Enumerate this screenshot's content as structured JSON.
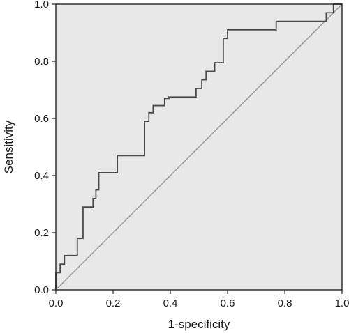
{
  "chart_data": {
    "type": "line",
    "title": "",
    "xlabel": "1-specificity",
    "ylabel": "Sensitivity",
    "xlim": [
      0,
      1
    ],
    "ylim": [
      0,
      1
    ],
    "x_ticks": [
      "0.0",
      "0.2",
      "0.4",
      "0.6",
      "0.8",
      "1.0"
    ],
    "y_ticks": [
      "0.0",
      "0.2",
      "0.4",
      "0.6",
      "0.8",
      "1.0"
    ],
    "grid": false,
    "legend": "none",
    "plot_background": "#e8e8e8",
    "colors": {
      "roc_curve": "#4a4a4a",
      "reference_line": "#a0a0a0"
    },
    "series": [
      {
        "values": [
          [
            0.0,
            0.0
          ],
          [
            0.0,
            0.06
          ],
          [
            0.015,
            0.06
          ],
          [
            0.015,
            0.09
          ],
          [
            0.03,
            0.09
          ],
          [
            0.03,
            0.12
          ],
          [
            0.075,
            0.12
          ],
          [
            0.075,
            0.18
          ],
          [
            0.095,
            0.18
          ],
          [
            0.095,
            0.29
          ],
          [
            0.13,
            0.29
          ],
          [
            0.13,
            0.32
          ],
          [
            0.14,
            0.32
          ],
          [
            0.14,
            0.35
          ],
          [
            0.15,
            0.35
          ],
          [
            0.15,
            0.41
          ],
          [
            0.215,
            0.41
          ],
          [
            0.215,
            0.47
          ],
          [
            0.31,
            0.47
          ],
          [
            0.31,
            0.59
          ],
          [
            0.325,
            0.59
          ],
          [
            0.325,
            0.62
          ],
          [
            0.34,
            0.62
          ],
          [
            0.34,
            0.645
          ],
          [
            0.38,
            0.645
          ],
          [
            0.38,
            0.67
          ],
          [
            0.395,
            0.67
          ],
          [
            0.395,
            0.675
          ],
          [
            0.49,
            0.675
          ],
          [
            0.49,
            0.705
          ],
          [
            0.51,
            0.705
          ],
          [
            0.51,
            0.735
          ],
          [
            0.525,
            0.735
          ],
          [
            0.525,
            0.765
          ],
          [
            0.555,
            0.765
          ],
          [
            0.555,
            0.795
          ],
          [
            0.585,
            0.795
          ],
          [
            0.585,
            0.88
          ],
          [
            0.6,
            0.88
          ],
          [
            0.6,
            0.91
          ],
          [
            0.77,
            0.91
          ],
          [
            0.77,
            0.94
          ],
          [
            0.945,
            0.94
          ],
          [
            0.945,
            0.97
          ],
          [
            0.97,
            0.97
          ],
          [
            0.97,
            1.0
          ],
          [
            1.0,
            1.0
          ]
        ]
      },
      {
        "values": [
          [
            0,
            0
          ],
          [
            1,
            1
          ]
        ]
      }
    ]
  }
}
